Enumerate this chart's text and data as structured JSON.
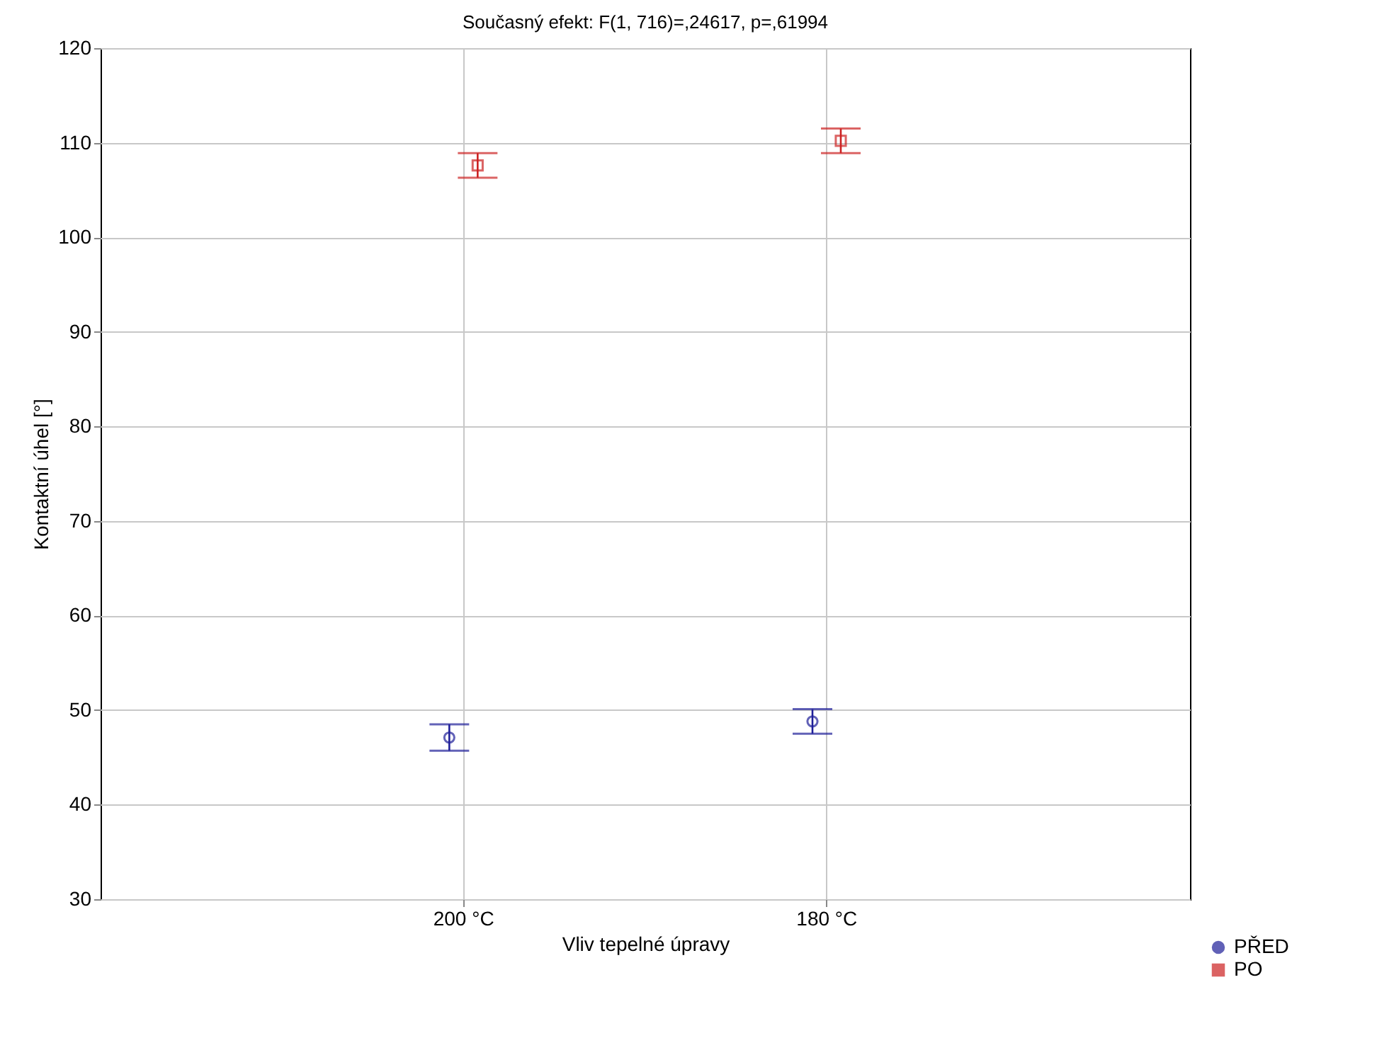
{
  "chart_data": {
    "type": "scatter",
    "title": "Současný efekt: F(1, 716)=,24617, p=,61994",
    "xlabel": "Vliv tepelné úpravy",
    "ylabel": "Kontaktní úhel [°]",
    "categories": [
      "200 °C",
      "180 °C"
    ],
    "series": [
      {
        "name": "PŘED",
        "color": "#1f1f99",
        "marker": "circle",
        "values": [
          47.1,
          48.8
        ],
        "errors": [
          1.4,
          1.3
        ]
      },
      {
        "name": "PO",
        "color": "#cc2222",
        "marker": "square",
        "values": [
          107.6,
          110.2
        ],
        "errors": [
          1.3,
          1.3
        ]
      }
    ],
    "ylim": [
      30,
      120
    ],
    "yticks": [
      30,
      40,
      50,
      60,
      70,
      80,
      90,
      100,
      110,
      120
    ],
    "grid": true,
    "legend": "bottom right"
  }
}
